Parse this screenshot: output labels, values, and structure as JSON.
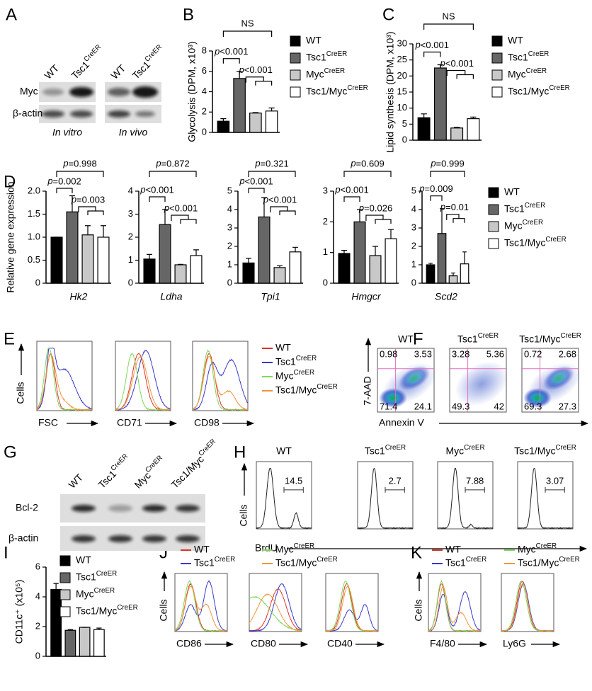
{
  "panels": [
    "A",
    "B",
    "C",
    "D",
    "E",
    "F",
    "G",
    "H",
    "I",
    "J",
    "K"
  ],
  "chart_data": [
    {
      "type": "bar",
      "ylabel": "Glycolysis (DPM, x10³)",
      "ylim": [
        0,
        8
      ],
      "yticks": [
        0,
        2,
        4,
        6,
        8
      ],
      "series": [
        {
          "name": "WT",
          "color": "#000000",
          "values": [
            1.1
          ],
          "errors": [
            0.25
          ]
        },
        {
          "name": "Tsc1CreER",
          "color": "#666666",
          "values": [
            5.3
          ],
          "errors": [
            0.7
          ]
        },
        {
          "name": "MycCreER",
          "color": "#c8c8c8",
          "values": [
            1.9
          ],
          "errors": [
            0.05
          ]
        },
        {
          "name": "Tsc1/MycCreER",
          "color": "#ffffff",
          "values": [
            2.1
          ],
          "errors": [
            0.3
          ]
        }
      ],
      "annotations": [
        "p<0.001",
        "p<0.001",
        "NS"
      ]
    },
    {
      "type": "bar",
      "ylabel": "Lipid synthesis (DPM, x10³)",
      "ylim": [
        0,
        30
      ],
      "yticks": [
        0,
        5,
        10,
        15,
        20,
        25,
        30
      ],
      "series": [
        {
          "name": "WT",
          "color": "#000000",
          "values": [
            7
          ],
          "errors": [
            1.2
          ]
        },
        {
          "name": "Tsc1CreER",
          "color": "#666666",
          "values": [
            22.5
          ],
          "errors": [
            1
          ]
        },
        {
          "name": "MycCreER",
          "color": "#c8c8c8",
          "values": [
            3.8
          ],
          "errors": [
            0.2
          ]
        },
        {
          "name": "Tsc1/MycCreER",
          "color": "#ffffff",
          "values": [
            6.7
          ],
          "errors": [
            0.5
          ]
        }
      ],
      "annotations": [
        "p<0.001",
        "p<0.001",
        "NS"
      ]
    },
    {
      "type": "bar",
      "ylabel": "Relative gene expression",
      "xlabel": "Hk2",
      "ylim": [
        0,
        2
      ],
      "yticks": [
        0,
        0.5,
        {
          "value": 1,
          "label": "1.0"
        },
        1.5,
        {
          "value": 2,
          "label": "2.0"
        }
      ],
      "series": [
        {
          "name": "WT",
          "color": "#000000",
          "values": [
            1.0
          ],
          "errors": [
            0
          ]
        },
        {
          "name": "Tsc1CreER",
          "color": "#666666",
          "values": [
            1.55
          ],
          "errors": [
            0.35
          ]
        },
        {
          "name": "MycCreER",
          "color": "#c8c8c8",
          "values": [
            1.05
          ],
          "errors": [
            0.2
          ]
        },
        {
          "name": "Tsc1/MycCreER",
          "color": "#ffffff",
          "values": [
            1.0
          ],
          "errors": [
            0.25
          ]
        }
      ],
      "annotations": [
        "p=0.002",
        "p=0.003",
        "p=0.998"
      ]
    },
    {
      "type": "bar",
      "xlabel": "Ldha",
      "ylim": [
        0,
        4
      ],
      "yticks": [
        0,
        1,
        2,
        3,
        4
      ],
      "series": [
        {
          "color": "#000000",
          "values": [
            1.05
          ],
          "errors": [
            0.2
          ]
        },
        {
          "color": "#666666",
          "values": [
            2.55
          ],
          "errors": [
            0.65
          ]
        },
        {
          "color": "#c8c8c8",
          "values": [
            0.8
          ],
          "errors": [
            0.02
          ]
        },
        {
          "color": "#ffffff",
          "values": [
            1.2
          ],
          "errors": [
            0.25
          ]
        }
      ],
      "annotations": [
        "p<0.001",
        "p<0.001",
        "p=0.872"
      ]
    },
    {
      "type": "bar",
      "xlabel": "Tpi1",
      "ylim": [
        0,
        5
      ],
      "yticks": [
        0,
        1,
        2,
        3,
        4,
        5
      ],
      "series": [
        {
          "color": "#000000",
          "values": [
            1.1
          ],
          "errors": [
            0.25
          ]
        },
        {
          "color": "#666666",
          "values": [
            3.6
          ],
          "errors": [
            1.05
          ]
        },
        {
          "color": "#c8c8c8",
          "values": [
            0.85
          ],
          "errors": [
            0.1
          ]
        },
        {
          "color": "#ffffff",
          "values": [
            1.7
          ],
          "errors": [
            0.25
          ]
        }
      ],
      "annotations": [
        "p<0.001",
        "p<0.001",
        "p=0.321"
      ]
    },
    {
      "type": "bar",
      "xlabel": "Hmgcr",
      "ylim": [
        0,
        3
      ],
      "yticks": [
        0,
        1,
        2,
        3
      ],
      "series": [
        {
          "color": "#000000",
          "values": [
            0.97
          ],
          "errors": [
            0.1
          ]
        },
        {
          "color": "#666666",
          "values": [
            2.0
          ],
          "errors": [
            0.4
          ]
        },
        {
          "color": "#c8c8c8",
          "values": [
            0.9
          ],
          "errors": [
            0.3
          ]
        },
        {
          "color": "#ffffff",
          "values": [
            1.45
          ],
          "errors": [
            0.3
          ]
        }
      ],
      "annotations": [
        "p<0.001",
        "p=0.026",
        "p=0.609"
      ]
    },
    {
      "type": "bar",
      "xlabel": "Scd2",
      "ylim": [
        0,
        5
      ],
      "yticks": [
        0,
        1,
        2,
        3,
        4,
        5
      ],
      "series": [
        {
          "color": "#000000",
          "values": [
            1.0
          ],
          "errors": [
            0.08
          ]
        },
        {
          "color": "#666666",
          "values": [
            2.7
          ],
          "errors": [
            1.35
          ]
        },
        {
          "color": "#c8c8c8",
          "values": [
            0.4
          ],
          "errors": [
            0.15
          ]
        },
        {
          "color": "#ffffff",
          "values": [
            1.05
          ],
          "errors": [
            0.65
          ]
        }
      ],
      "annotations": [
        "p=0.009",
        "p=0.01",
        "p=0.999"
      ]
    },
    {
      "type": "bar",
      "ylabel": "CD11c⁺ (x10⁵)",
      "ylim": [
        0,
        6
      ],
      "yticks": [
        0,
        2,
        4,
        6
      ],
      "series": [
        {
          "name": "WT",
          "color": "#000000",
          "values": [
            4.5
          ],
          "errors": [
            0.4
          ]
        },
        {
          "name": "Tsc1CreER",
          "color": "#666666",
          "values": [
            1.75
          ],
          "errors": [
            0.05
          ]
        },
        {
          "name": "MycCreER",
          "color": "#c8c8c8",
          "values": [
            1.95
          ],
          "errors": [
            0
          ]
        },
        {
          "name": "Tsc1/MycCreER",
          "color": "#ffffff",
          "values": [
            1.8
          ],
          "errors": [
            0.1
          ]
        }
      ]
    }
  ],
  "blot_a": {
    "lanes": [
      "WT",
      "Tsc1CreER",
      "WT",
      "Tsc1CreER"
    ],
    "rows": [
      "Myc",
      "β-actin"
    ],
    "conditions": [
      "In vitro",
      "In vivo"
    ]
  },
  "flow_e": {
    "legend": [
      {
        "name": "WT",
        "color": "#d9352a"
      },
      {
        "name": "Tsc1CreER",
        "color": "#3a3ac8"
      },
      {
        "name": "MycCreER",
        "color": "#7fd85a"
      },
      {
        "name": "Tsc1/MycCreER",
        "color": "#f0963c"
      }
    ],
    "ylabel": "Cells",
    "xlabels": [
      "FSC",
      "CD71",
      "CD98"
    ]
  },
  "flow_f": {
    "titles": [
      "WT",
      "Tsc1CreER",
      "Tsc1/MycCreER"
    ],
    "quadrants": [
      [
        0.98,
        3.53,
        71.4,
        24.1
      ],
      [
        3.28,
        5.36,
        49.3,
        42
      ],
      [
        0.72,
        2.68,
        69.3,
        27.3
      ]
    ],
    "ylabel": "7-AAD",
    "xlabel": "Annexin V"
  },
  "blot_g": {
    "lanes": [
      "WT",
      "Tsc1CreER",
      "MycCreER",
      "Tsc1/MycCreER"
    ],
    "rows": [
      "Bcl-2",
      "β-actin"
    ]
  },
  "flow_h": {
    "titles": [
      "WT",
      "Tsc1CreER",
      "MycCreER",
      "Tsc1/MycCreER"
    ],
    "gates": [
      14.5,
      2.7,
      7.88,
      3.07
    ],
    "ylabel": "Cells",
    "xlabel": "BrdU"
  },
  "flow_j": {
    "legend": [
      {
        "name": "WT",
        "color": "#d9352a"
      },
      {
        "name": "Tsc1CreER",
        "color": "#3a3ac8"
      },
      {
        "name": "MycCreER",
        "color": "#7fd85a"
      },
      {
        "name": "Tsc1/MycCreER",
        "color": "#f0963c"
      }
    ],
    "ylabel": "Cells",
    "xlabels": [
      "CD86",
      "CD80",
      "CD40"
    ]
  },
  "flow_k": {
    "legend": [
      {
        "name": "WT",
        "color": "#d9352a"
      },
      {
        "name": "Tsc1CreER",
        "color": "#3a3ac8"
      },
      {
        "name": "MycCreER",
        "color": "#7fd85a"
      },
      {
        "name": "Tsc1/MycCreER",
        "color": "#f0963c"
      }
    ],
    "ylabel": "Cells",
    "xlabels": [
      "F4/80",
      "Ly6G"
    ]
  }
}
